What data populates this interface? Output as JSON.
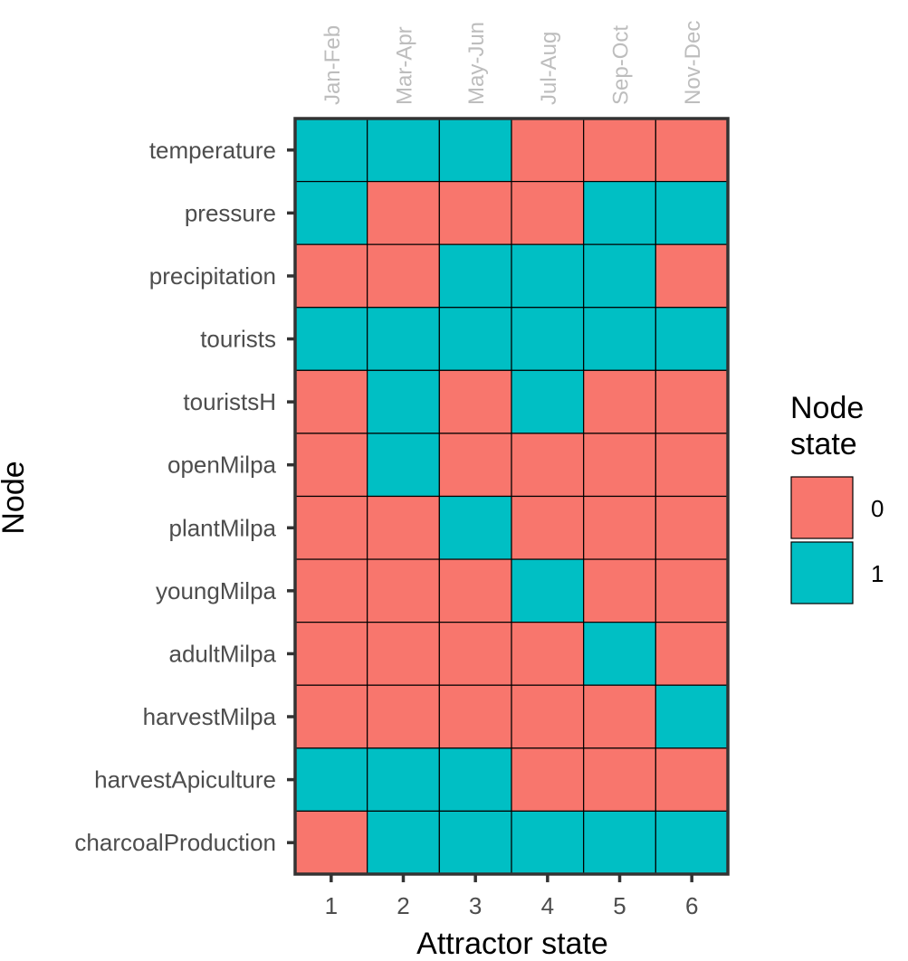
{
  "chart_data": {
    "type": "heatmap",
    "title": "",
    "xlabel": "Attractor state",
    "ylabel": "Node",
    "x_categories": [
      "1",
      "2",
      "3",
      "4",
      "5",
      "6"
    ],
    "x_top_labels": [
      "Jan-Feb",
      "Mar-Apr",
      "May-Jun",
      "Jul-Aug",
      "Sep-Oct",
      "Nov-Dec"
    ],
    "y_categories": [
      "temperature",
      "pressure",
      "precipitation",
      "tourists",
      "touristsH",
      "openMilpa",
      "plantMilpa",
      "youngMilpa",
      "adultMilpa",
      "harvestMilpa",
      "harvestApiculture",
      "charcoalProduction"
    ],
    "values": [
      [
        1,
        1,
        1,
        0,
        0,
        0
      ],
      [
        1,
        0,
        0,
        0,
        1,
        1
      ],
      [
        0,
        0,
        1,
        1,
        1,
        0
      ],
      [
        1,
        1,
        1,
        1,
        1,
        1
      ],
      [
        0,
        1,
        0,
        1,
        0,
        0
      ],
      [
        0,
        1,
        0,
        0,
        0,
        0
      ],
      [
        0,
        0,
        1,
        0,
        0,
        0
      ],
      [
        0,
        0,
        0,
        1,
        0,
        0
      ],
      [
        0,
        0,
        0,
        0,
        1,
        0
      ],
      [
        0,
        0,
        0,
        0,
        0,
        1
      ],
      [
        1,
        1,
        1,
        0,
        0,
        0
      ],
      [
        0,
        1,
        1,
        1,
        1,
        1
      ]
    ],
    "legend": {
      "title_lines": [
        "Node",
        "state"
      ],
      "placement": "right",
      "entries": [
        {
          "label": "0",
          "value": 0,
          "color": "#F8766D"
        },
        {
          "label": "1",
          "value": 1,
          "color": "#00BFC4"
        }
      ]
    },
    "colors": {
      "0": "#F8766D",
      "1": "#00BFC4"
    },
    "grid": false
  }
}
